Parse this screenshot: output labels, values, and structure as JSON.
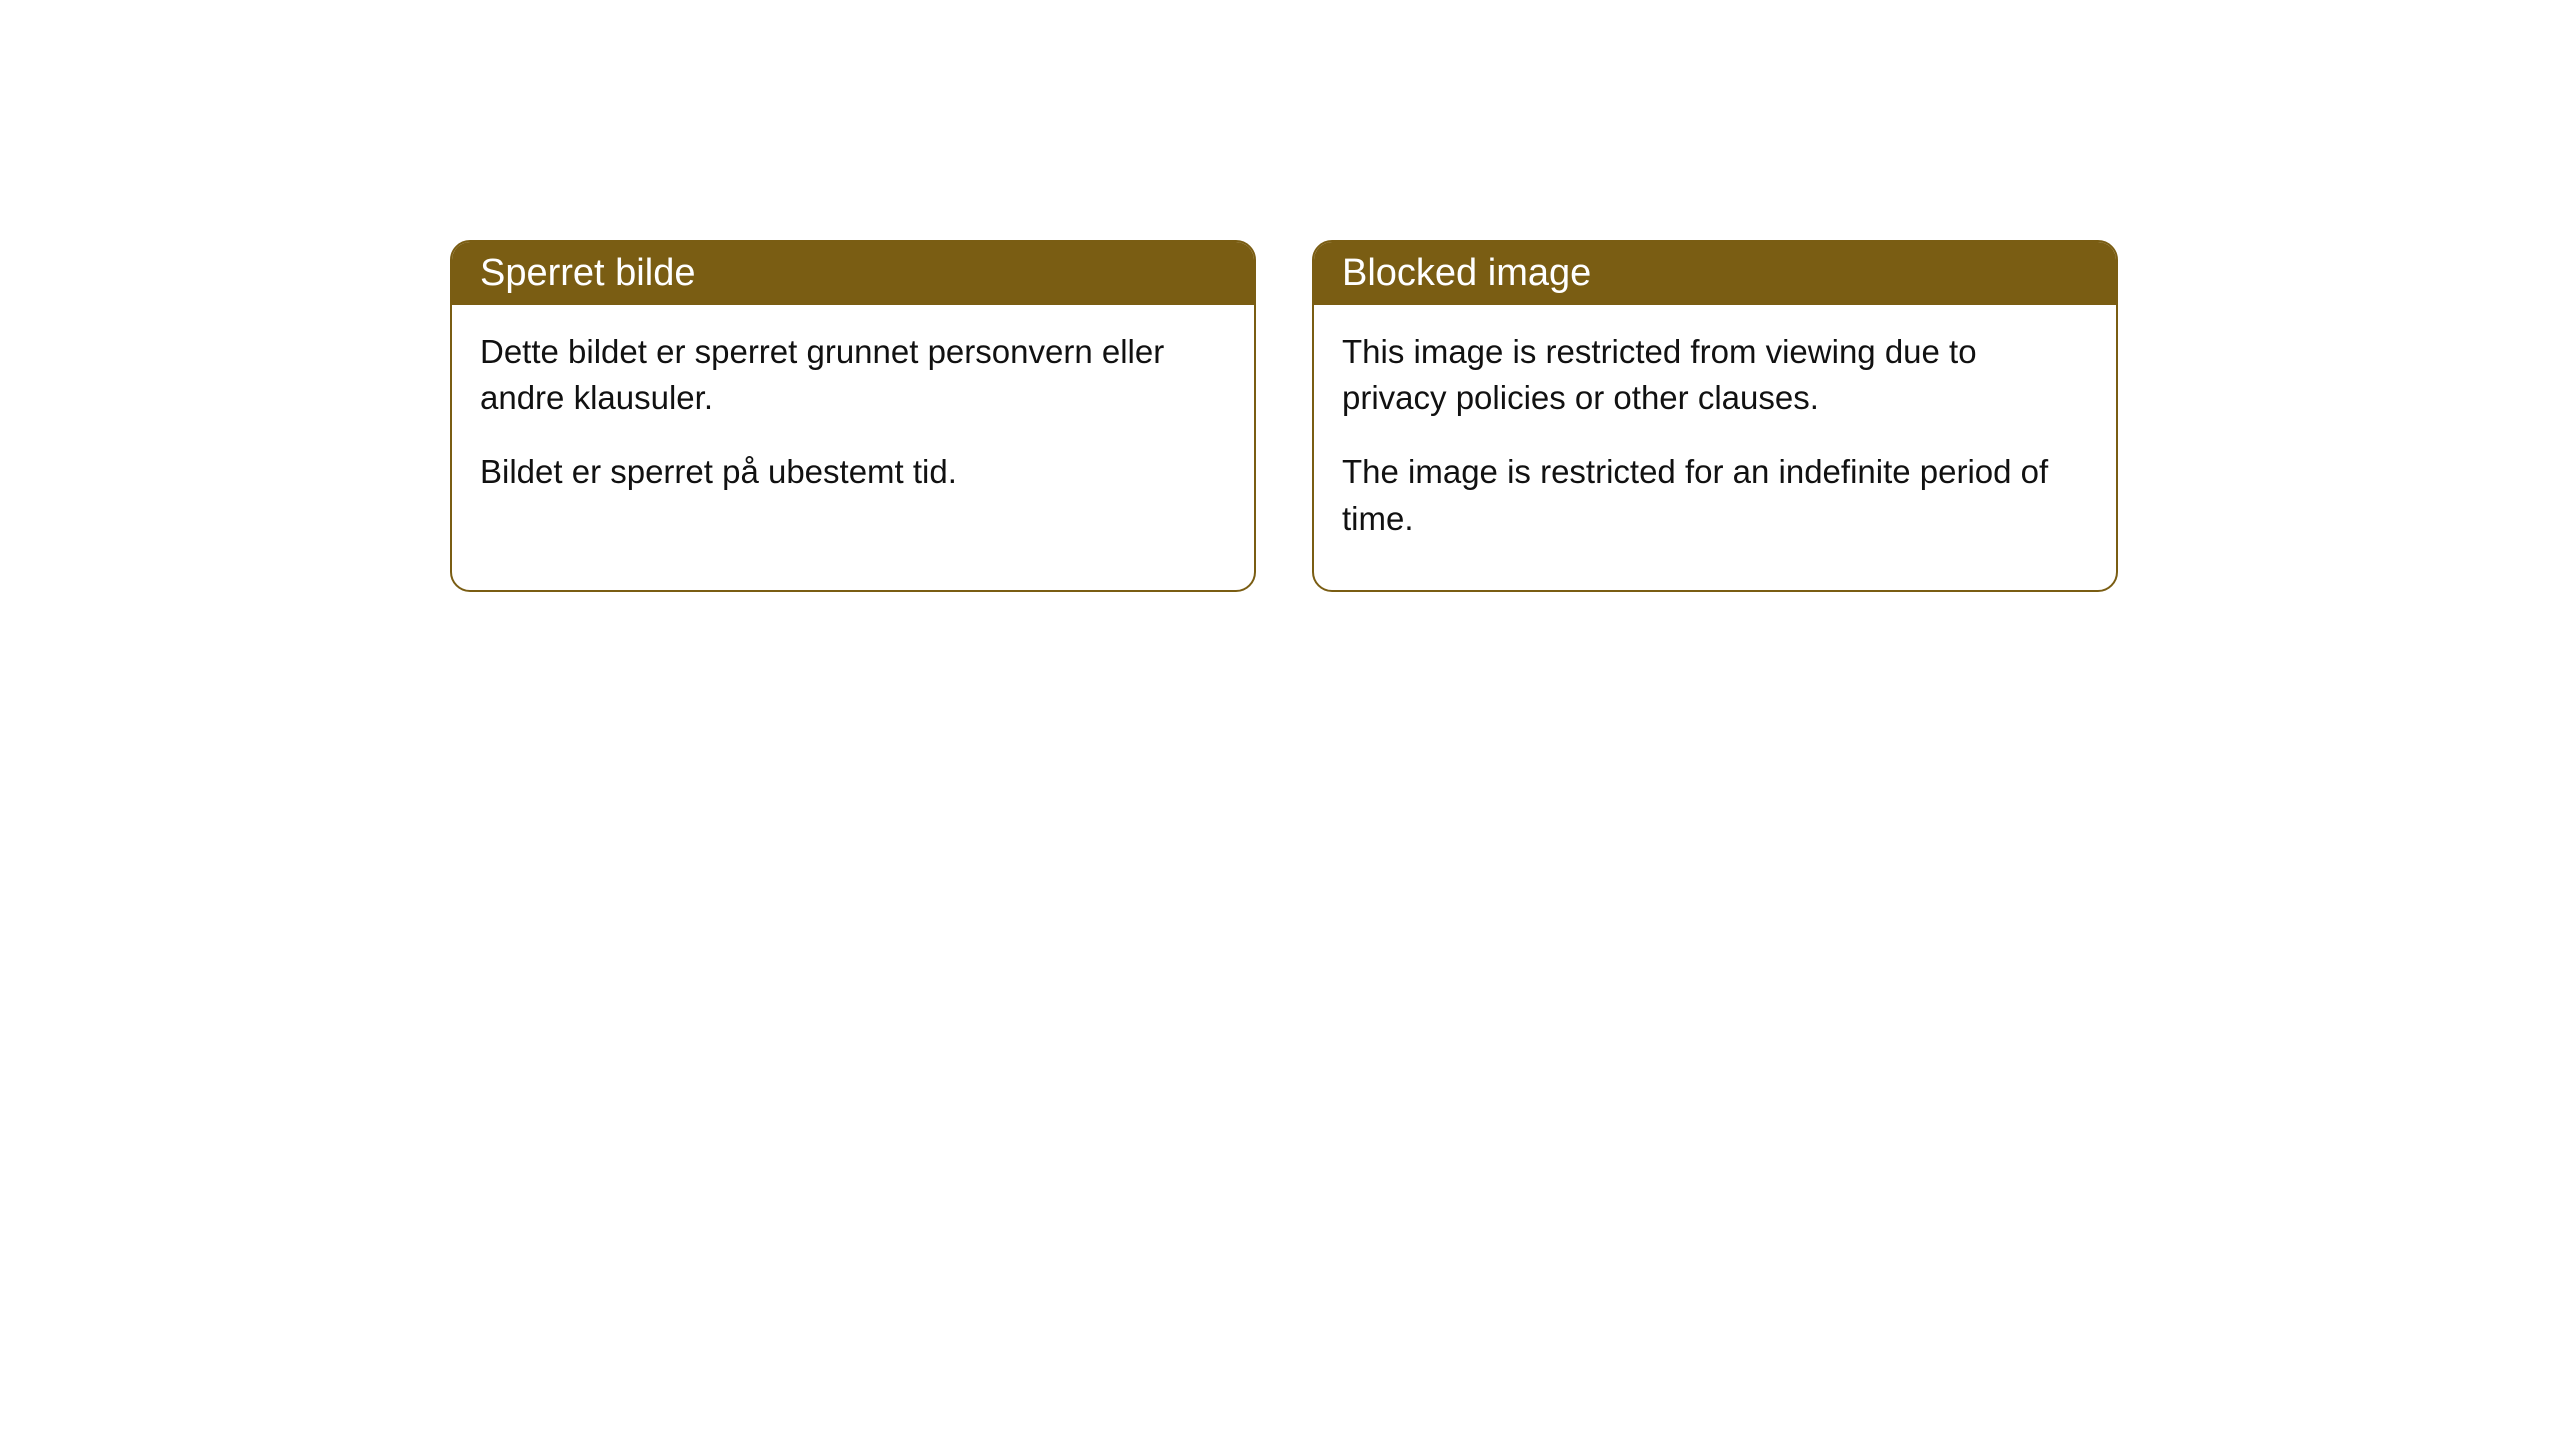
{
  "cards": [
    {
      "header": "Sperret bilde",
      "body_p1": "Dette bildet er sperret grunnet personvern eller andre klausuler.",
      "body_p2": "Bildet er sperret på ubestemt tid."
    },
    {
      "header": "Blocked image",
      "body_p1": "This image is restricted from viewing due to privacy policies or other clauses.",
      "body_p2": "The image is restricted for an indefinite period of time."
    }
  ],
  "style": {
    "header_bg_color": "#7a5d13",
    "header_text_color": "#ffffff",
    "border_color": "#7a5d13",
    "body_text_color": "#111111",
    "page_bg_color": "#ffffff",
    "border_radius": 20,
    "header_fontsize": 38,
    "body_fontsize": 33
  }
}
